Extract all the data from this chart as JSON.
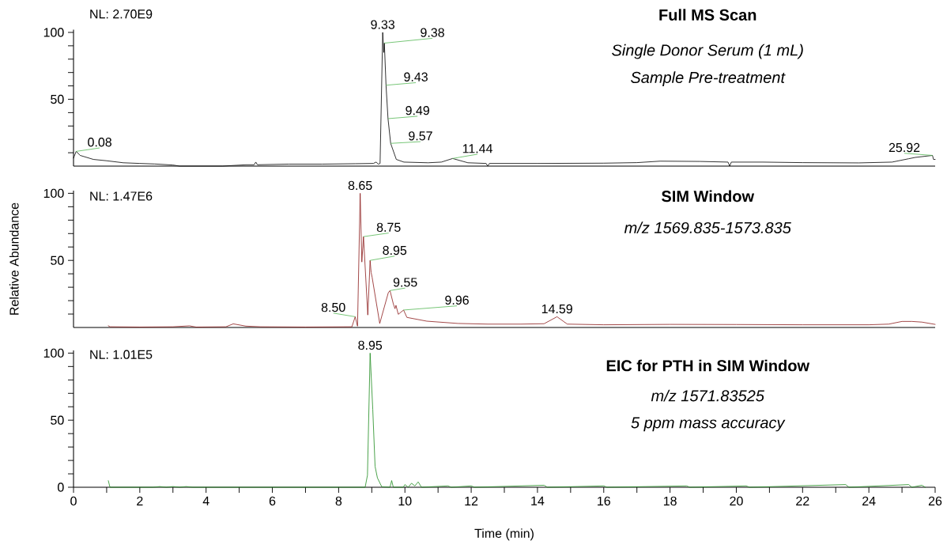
{
  "chart_data": [
    {
      "type": "line",
      "title": "Full MS Scan",
      "subtitle": "Single Donor Serum (1 mL)",
      "color": "#000000",
      "x": [
        0,
        0.08,
        0.2,
        0.6,
        1.0,
        1.5,
        2.0,
        2.45,
        3.0,
        3.2,
        4.0,
        4.5,
        5.2,
        5.45,
        5.5,
        5.55,
        6.5,
        7.5,
        8.5,
        9.05,
        9.13,
        9.2,
        9.25,
        9.33,
        9.36,
        9.38,
        9.43,
        9.49,
        9.57,
        9.74,
        9.97,
        10.7,
        11.1,
        11.44,
        11.9,
        12.45,
        12.5,
        12.55,
        14,
        16,
        17,
        17.7,
        18.9,
        19.75,
        19.8,
        19.85,
        20.8,
        22,
        23.7,
        24.7,
        25.2,
        25.4,
        25.92,
        25.95,
        26
      ],
      "values": [
        6,
        11,
        8,
        5,
        4,
        2.5,
        2,
        1.6,
        0.8,
        0,
        0,
        0,
        1,
        1,
        3,
        1,
        1.5,
        1.5,
        1.8,
        2,
        3,
        1.5,
        2,
        100,
        85,
        92,
        60.5,
        35.5,
        17,
        5,
        3,
        2.5,
        3,
        5.7,
        2.5,
        2,
        0,
        2,
        2,
        2.2,
        2.6,
        3.7,
        3.5,
        3,
        0,
        3,
        3,
        2.6,
        2.4,
        3,
        5.5,
        6.5,
        8,
        5,
        5
      ],
      "xlim": [
        0,
        26
      ],
      "ylim": [
        0,
        102
      ],
      "tick_labels": "y",
      "yticks": [
        {
          "value": 10,
          "label": null
        },
        {
          "value": 20,
          "label": null
        },
        {
          "value": 30,
          "label": null
        },
        {
          "value": 40,
          "label": null
        },
        50,
        {
          "value": 60,
          "label": null
        },
        {
          "value": 70,
          "label": null
        },
        {
          "value": 80,
          "label": null
        },
        {
          "value": 90,
          "label": null
        },
        100
      ],
      "annotations": [
        "NL: 2.70E9",
        "Sample Pre-treatment",
        {
          "text": "0.08",
          "x": 0.08,
          "y": 11
        },
        {
          "text": "9.33",
          "x": 9.33,
          "y": 100
        },
        {
          "text": "9.38",
          "x": 9.38,
          "y": 92
        },
        {
          "text": "9.43",
          "x": 9.43,
          "y": 60.5
        },
        {
          "text": "9.49",
          "x": 9.49,
          "y": 35.5
        },
        {
          "text": "9.57",
          "x": 9.57,
          "y": 17
        },
        {
          "text": "11.44",
          "x": 11.44,
          "y": 5.7
        },
        {
          "text": "25.92",
          "x": 25.92,
          "y": 8
        }
      ]
    },
    {
      "type": "line",
      "title": "SIM Window",
      "subtitle": "m/z 1569.835-1573.835",
      "ylabel": "Relative Abundance",
      "color": "#8b1a1a",
      "x": [
        1.05,
        1.1,
        2,
        3.0,
        3.5,
        3.7,
        4.6,
        4.82,
        5.2,
        5.65,
        7,
        8.4,
        8.5,
        8.57,
        8.65,
        8.7,
        8.75,
        8.88,
        8.95,
        8.98,
        9.01,
        9.24,
        9.5,
        9.55,
        9.65,
        9.7,
        9.73,
        9.8,
        9.96,
        10.06,
        10.66,
        11.6,
        12.5,
        13.5,
        14.2,
        14.59,
        14.9,
        16,
        18,
        20,
        22,
        24,
        24.6,
        25.0,
        25.3,
        25.6,
        26
      ],
      "values": [
        1.3,
        0.5,
        0.3,
        0.5,
        1.2,
        0.3,
        0.5,
        2.7,
        1,
        0.5,
        0.3,
        0.5,
        8,
        1,
        100,
        48.8,
        67.7,
        9.3,
        50,
        41,
        37.5,
        3,
        26,
        27.5,
        17.6,
        14,
        16.5,
        9.8,
        13,
        7.5,
        4.7,
        3,
        2.5,
        2.5,
        2.8,
        8,
        2.5,
        2,
        2.3,
        2.2,
        2,
        2,
        2.5,
        4.5,
        4.5,
        4,
        2.3
      ],
      "xlim": [
        0,
        26
      ],
      "ylim": [
        0,
        102
      ],
      "tick_labels": "y",
      "yticks": [
        {
          "value": 10,
          "label": null
        },
        {
          "value": 20,
          "label": null
        },
        {
          "value": 30,
          "label": null
        },
        {
          "value": 40,
          "label": null
        },
        50,
        {
          "value": 60,
          "label": null
        },
        {
          "value": 70,
          "label": null
        },
        {
          "value": 80,
          "label": null
        },
        {
          "value": 90,
          "label": null
        },
        100
      ],
      "annotations": [
        "NL: 1.47E6",
        {
          "text": "8.50",
          "x": 8.5,
          "y": 8
        },
        {
          "text": "8.65",
          "x": 8.65,
          "y": 100
        },
        {
          "text": "8.75",
          "x": 8.75,
          "y": 67.7
        },
        {
          "text": "8.95",
          "x": 8.95,
          "y": 50
        },
        {
          "text": "9.55",
          "x": 9.55,
          "y": 27.5
        },
        {
          "text": "9.96",
          "x": 9.96,
          "y": 13
        },
        {
          "text": "14.59",
          "x": 14.59,
          "y": 8
        }
      ]
    },
    {
      "type": "line",
      "title": "EIC for PTH in SIM Window",
      "subtitle": "m/z 1571.83525",
      "xlabel": "Time (min)",
      "color": "#1e8c1e",
      "x": [
        1.05,
        1.1,
        2.4,
        2.6,
        2.8,
        3.0,
        3.2,
        3.4,
        3.6,
        8.8,
        8.87,
        8.95,
        9.03,
        9.1,
        9.17,
        9.3,
        9.55,
        9.6,
        9.65,
        9.95,
        10.0,
        10.1,
        10.2,
        10.3,
        10.4,
        10.5,
        11.3,
        11.4,
        12.0,
        12.1,
        14.2,
        14.3,
        16,
        16.1,
        18.5,
        18.6,
        20.3,
        20.4,
        23.3,
        23.4,
        25.2,
        25.3,
        25.6,
        25.7
      ],
      "values": [
        4.9,
        0,
        0,
        0.5,
        0,
        0.5,
        0,
        0.5,
        0,
        0,
        9,
        100,
        58,
        15.5,
        7,
        0.4,
        0,
        5,
        0,
        0,
        2,
        0,
        3,
        1,
        4,
        0,
        1,
        0,
        1,
        0,
        1.5,
        0,
        1,
        0,
        1,
        0,
        1,
        0,
        2,
        0,
        2,
        0,
        1.5,
        0
      ],
      "xlim": [
        0,
        26
      ],
      "ylim": [
        0,
        102
      ],
      "xticks": [
        0,
        {
          "value": 1,
          "label": null
        },
        2,
        {
          "value": 3,
          "label": null
        },
        4,
        {
          "value": 5,
          "label": null
        },
        6,
        {
          "value": 7,
          "label": null
        },
        8,
        {
          "value": 9,
          "label": null
        },
        10,
        {
          "value": 11,
          "label": null
        },
        12,
        {
          "value": 13,
          "label": null
        },
        14,
        {
          "value": 15,
          "label": null
        },
        16,
        {
          "value": 17,
          "label": null
        },
        18,
        {
          "value": 19,
          "label": null
        },
        20,
        {
          "value": 21,
          "label": null
        },
        22,
        {
          "value": 23,
          "label": null
        },
        24,
        {
          "value": 25,
          "label": null
        },
        26
      ],
      "yticks": [
        0,
        {
          "value": 10,
          "label": null
        },
        {
          "value": 20,
          "label": null
        },
        {
          "value": 30,
          "label": null
        },
        {
          "value": 40,
          "label": null
        },
        50,
        {
          "value": 60,
          "label": null
        },
        {
          "value": 70,
          "label": null
        },
        {
          "value": 80,
          "label": null
        },
        {
          "value": 90,
          "label": null
        },
        100
      ],
      "annotations": [
        "NL: 1.01E5",
        "5 ppm mass accuracy",
        {
          "text": "8.95",
          "x": 8.95,
          "y": 100
        }
      ]
    }
  ]
}
